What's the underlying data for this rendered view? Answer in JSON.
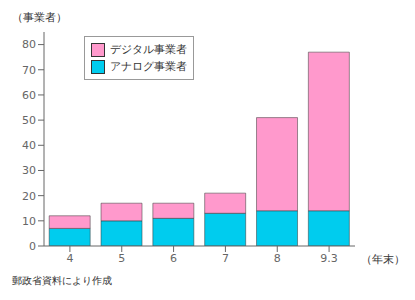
{
  "chart_data": {
    "type": "bar",
    "stacked": true,
    "ylabel": "（事業者）",
    "xlabel": "（年末）",
    "annotations": [
      "郵政省資料により作成"
    ],
    "categories": [
      "4",
      "5",
      "6",
      "7",
      "8",
      "9.3"
    ],
    "series": [
      {
        "name": "アナログ事業者",
        "color": "#00CCEE",
        "values": [
          7,
          10,
          11,
          13,
          14,
          14
        ]
      },
      {
        "name": "デジタル事業者",
        "color": "#FF99CC",
        "values": [
          5,
          7,
          6,
          8,
          37,
          63
        ]
      }
    ],
    "ylim": [
      0,
      85
    ],
    "yticks": [
      0,
      10,
      20,
      30,
      40,
      50,
      60,
      70,
      80
    ],
    "legend": "upper left"
  }
}
